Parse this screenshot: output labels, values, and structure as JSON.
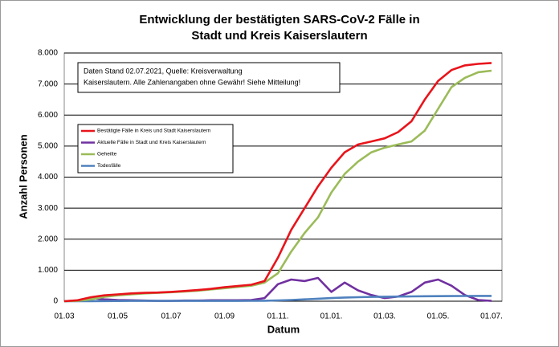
{
  "chart_data": {
    "type": "line",
    "title": [
      "Entwicklung der bestätigten SARS-CoV-2 Fälle in",
      "Stadt und Kreis Kaiserslautern"
    ],
    "annotation": [
      "Daten Stand 02.07.2021, Quelle: Kreisverwaltung",
      "Kaiserslautern. Alle Zahlenangaben ohne Gewähr! Siehe Mitteilung!"
    ],
    "xlabel": "Datum",
    "ylabel": "Anzahl Personen",
    "categories": [
      "01.03",
      null,
      null,
      null,
      "01.05",
      null,
      null,
      null,
      "01.07",
      null,
      null,
      null,
      "01.09",
      null,
      null,
      null,
      "01.11.",
      null,
      null,
      null,
      "01.01.",
      null,
      null,
      null,
      "01.03.",
      null,
      null,
      null,
      "01.05.",
      null,
      null,
      null,
      "01.07."
    ],
    "series": [
      {
        "name": "Bestätigte Fälle in Kreis und Stadt Kaiserslautern",
        "color": "#e8141b",
        "values": [
          0,
          30,
          130,
          190,
          220,
          250,
          270,
          280,
          300,
          330,
          360,
          400,
          450,
          490,
          530,
          650,
          1400,
          2300,
          3000,
          3700,
          4300,
          4800,
          5050,
          5150,
          5250,
          5450,
          5800,
          6500,
          7100,
          7450,
          7600,
          7650,
          7680
        ]
      },
      {
        "name": "Aktuelle Fälle in Stadt und Kreis Kaiserslautern",
        "color": "#7030a0",
        "values": [
          0,
          20,
          100,
          60,
          40,
          30,
          20,
          10,
          10,
          20,
          20,
          30,
          30,
          30,
          40,
          100,
          550,
          700,
          650,
          750,
          300,
          600,
          350,
          200,
          100,
          150,
          300,
          600,
          700,
          500,
          200,
          40,
          10
        ]
      },
      {
        "name": "Geheilte",
        "color": "#9bbb59",
        "values": [
          0,
          10,
          60,
          140,
          190,
          220,
          250,
          270,
          290,
          310,
          340,
          380,
          420,
          460,
          500,
          600,
          900,
          1600,
          2200,
          2700,
          3500,
          4100,
          4500,
          4800,
          4950,
          5050,
          5150,
          5500,
          6200,
          6900,
          7200,
          7380,
          7430
        ]
      },
      {
        "name": "Todesfälle",
        "color": "#4f81bd",
        "values": [
          0,
          0,
          2,
          5,
          8,
          10,
          10,
          10,
          10,
          10,
          10,
          10,
          10,
          10,
          12,
          15,
          25,
          40,
          60,
          80,
          100,
          120,
          130,
          140,
          145,
          150,
          155,
          160,
          163,
          166,
          168,
          170,
          171
        ]
      }
    ],
    "ylim": [
      0,
      8000
    ],
    "yticks": [
      0,
      {
        "value": 1000,
        "label": "1.000"
      },
      {
        "value": 2000,
        "label": "2.000"
      },
      {
        "value": 3000,
        "label": "3.000"
      },
      {
        "value": 4000,
        "label": "4.000"
      },
      {
        "value": 5000,
        "label": "5.000"
      },
      {
        "value": 6000,
        "label": "6.000"
      },
      {
        "value": 7000,
        "label": "7.000"
      },
      {
        "value": 8000,
        "label": "8.000"
      }
    ],
    "grid": true
  }
}
